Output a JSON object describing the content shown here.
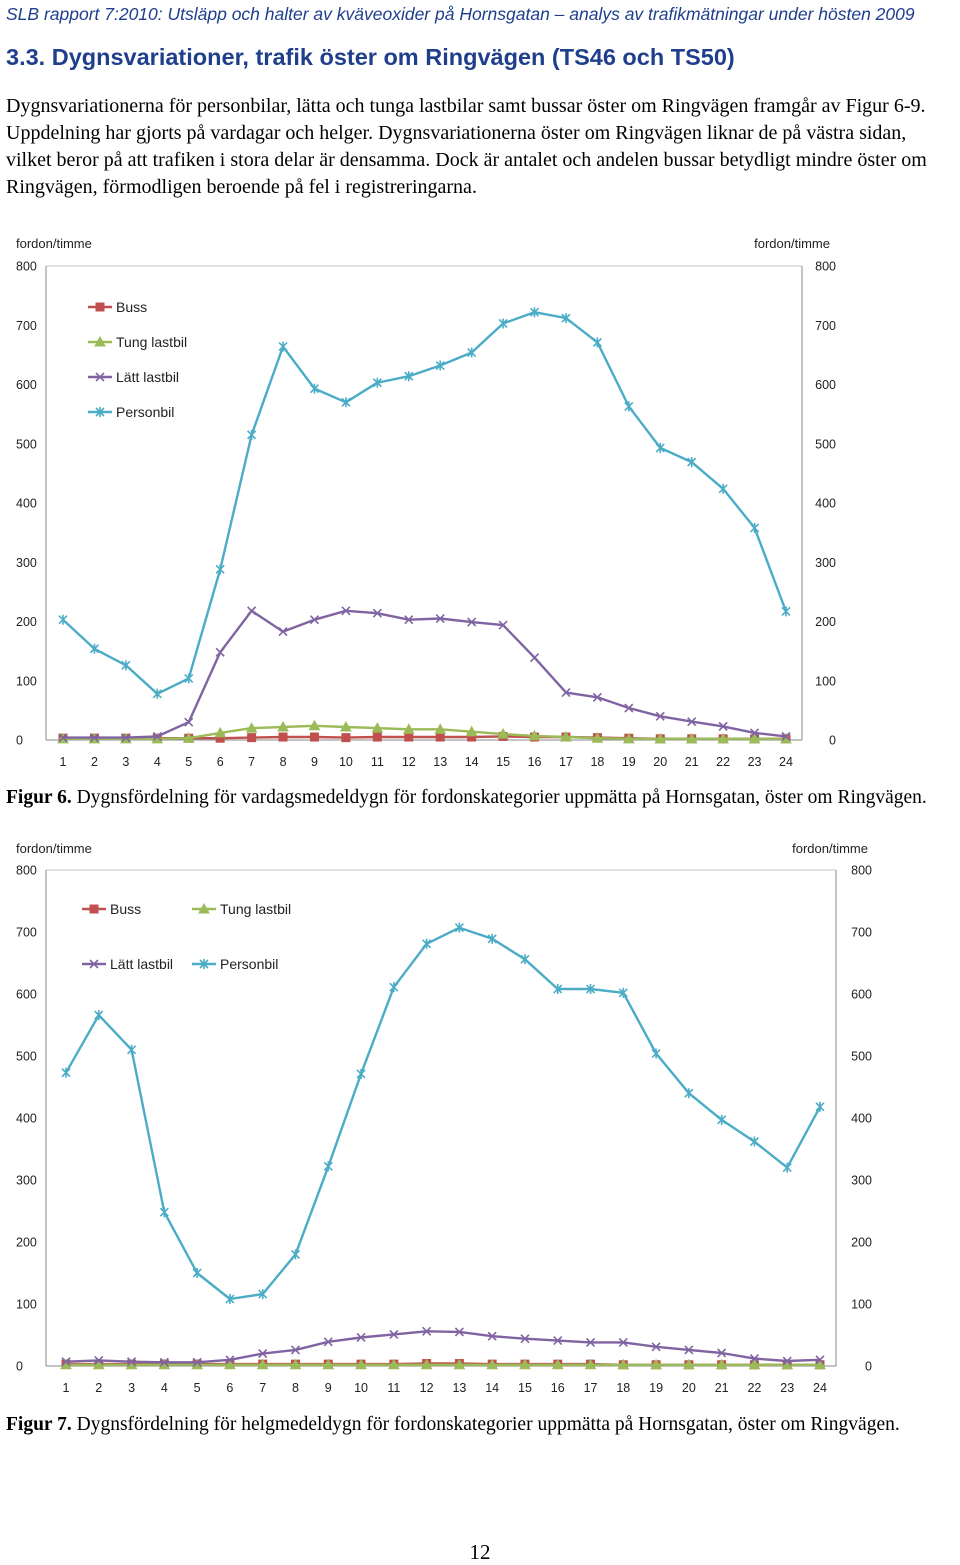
{
  "header": "SLB rapport 7:2010: Utsläpp och halter av kväveoxider på Hornsgatan – analys av trafikmätningar under hösten 2009",
  "section_title": "3.3. Dygnsvariationer, trafik öster om Ringvägen (TS46 och TS50)",
  "body_text": "Dygnsvariationerna för personbilar, lätta och tunga lastbilar samt bussar öster om Ringvägen framgår av Figur 6-9. Uppdelning har gjorts på vardagar och helger. Dygnsvariationerna öster om Ringvägen liknar de på västra sidan, vilket beror på att trafiken i stora delar är densamma. Dock är antalet och andelen bussar betydligt mindre öster om Ringvägen, förmodligen beroende på fel i registreringarna.",
  "figure6": {
    "label": "Figur 6.",
    "text": " Dygnsfördelning för vardagsmedeldygn för fordonskategorier uppmätta på Hornsgatan, öster om Ringvägen."
  },
  "figure7": {
    "label": "Figur 7.",
    "text": " Dygnsfördelning för helgmedeldygn för fordonskategorier uppmätta på Hornsgatan, öster om Ringvägen."
  },
  "page_number": "12",
  "colors": {
    "Buss": "#c0504d",
    "Tung lastbil": "#9bbb59",
    "Lätt lastbil": "#8064a2",
    "Personbil": "#4bacc6",
    "axis": "#888888",
    "title": "#1f3e8c"
  },
  "chart_data": [
    {
      "type": "line",
      "ylabel": "fordon/timme",
      "y2label": "fordon/timme",
      "ylim": [
        0,
        800
      ],
      "yticks": [
        0,
        100,
        200,
        300,
        400,
        500,
        600,
        700,
        800
      ],
      "x": [
        1,
        2,
        3,
        4,
        5,
        6,
        7,
        8,
        9,
        10,
        11,
        12,
        13,
        14,
        15,
        16,
        17,
        18,
        19,
        20,
        21,
        22,
        23,
        24
      ],
      "legend": "top-left, stacked vertically",
      "series": [
        {
          "name": "Buss",
          "marker": "square",
          "values": [
            3,
            3,
            3,
            3,
            3,
            3,
            4,
            5,
            5,
            4,
            5,
            5,
            5,
            5,
            6,
            5,
            5,
            4,
            3,
            2,
            2,
            2,
            2,
            2
          ]
        },
        {
          "name": "Tung lastbil",
          "marker": "triangle",
          "values": [
            2,
            2,
            2,
            2,
            3,
            12,
            20,
            22,
            24,
            22,
            20,
            18,
            18,
            14,
            10,
            7,
            5,
            3,
            2,
            2,
            2,
            2,
            2,
            2
          ]
        },
        {
          "name": "Lätt lastbil",
          "marker": "x",
          "values": [
            4,
            4,
            4,
            6,
            30,
            148,
            218,
            183,
            203,
            218,
            214,
            203,
            205,
            199,
            194,
            139,
            80,
            72,
            54,
            40,
            31,
            23,
            12,
            6
          ]
        },
        {
          "name": "Personbil",
          "marker": "asterisk",
          "values": [
            203,
            154,
            126,
            78,
            104,
            288,
            515,
            664,
            593,
            570,
            603,
            614,
            632,
            654,
            703,
            722,
            712,
            671,
            563,
            493,
            469,
            424,
            358,
            217
          ]
        }
      ]
    },
    {
      "type": "line",
      "ylabel": "fordon/timme",
      "y2label": "fordon/timme",
      "ylim": [
        0,
        800
      ],
      "yticks": [
        0,
        100,
        200,
        300,
        400,
        500,
        600,
        700,
        800
      ],
      "x": [
        1,
        2,
        3,
        4,
        5,
        6,
        7,
        8,
        9,
        10,
        11,
        12,
        13,
        14,
        15,
        16,
        17,
        18,
        19,
        20,
        21,
        22,
        23,
        24
      ],
      "legend": "top-left, two columns",
      "series": [
        {
          "name": "Buss",
          "marker": "square",
          "values": [
            3,
            3,
            3,
            3,
            3,
            3,
            3,
            3,
            3,
            3,
            3,
            4,
            4,
            3,
            3,
            3,
            3,
            2,
            2,
            2,
            2,
            2,
            2,
            2
          ]
        },
        {
          "name": "Tung lastbil",
          "marker": "triangle",
          "values": [
            2,
            2,
            2,
            2,
            2,
            2,
            2,
            2,
            2,
            2,
            2,
            2,
            2,
            2,
            2,
            2,
            2,
            2,
            2,
            2,
            2,
            2,
            2,
            2
          ]
        },
        {
          "name": "Lätt lastbil",
          "marker": "x",
          "values": [
            7,
            9,
            7,
            6,
            6,
            10,
            20,
            26,
            39,
            46,
            51,
            56,
            55,
            48,
            44,
            41,
            38,
            38,
            31,
            26,
            21,
            12,
            8,
            10
          ]
        },
        {
          "name": "Personbil",
          "marker": "asterisk",
          "values": [
            473,
            566,
            510,
            248,
            150,
            108,
            116,
            180,
            322,
            471,
            611,
            681,
            707,
            689,
            656,
            608,
            608,
            602,
            504,
            440,
            397,
            362,
            320,
            418
          ]
        }
      ]
    }
  ]
}
